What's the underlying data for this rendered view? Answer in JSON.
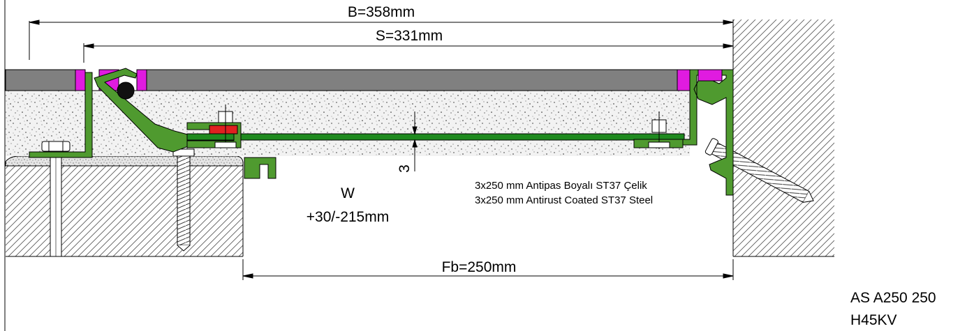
{
  "dimensions": {
    "overall_width": "B=358mm",
    "span_width": "S=331mm",
    "free_gap": "Fb=250mm",
    "plate_offset": "3"
  },
  "movement": {
    "label": "W",
    "range": "+30/-215mm"
  },
  "notes": {
    "turkish": "3x250 mm Antipas Boyalı ST37 Çelik",
    "english": "3x250 mm Antirust Coated ST37 Steel"
  },
  "product": {
    "code": "AS A250 250",
    "variant": "H45KV"
  },
  "colors": {
    "profile_green": "#4f9a2f",
    "plate_green": "#1f8a1f",
    "seal_magenta": "#e01be0",
    "rubber_red": "#e02020",
    "surface_gray": "#808080"
  }
}
